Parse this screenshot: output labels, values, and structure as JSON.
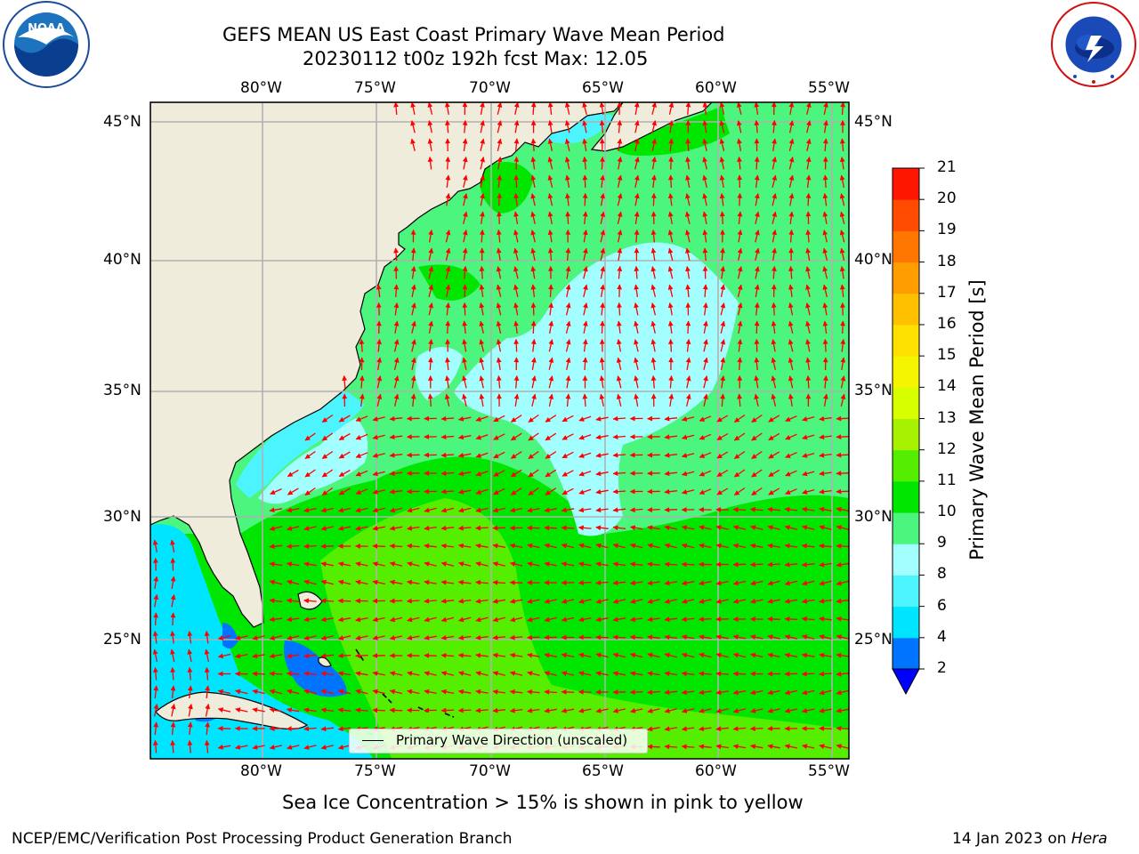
{
  "header": {
    "title_line1": "GEFS MEAN US East Coast Primary Wave Mean Period",
    "title_line2": "20230112 t00z 192h fcst   Max: 12.05"
  },
  "logos": {
    "left": "NOAA",
    "left_ring_text": "NATIONAL OCEANIC AND ATMOSPHERIC ADMINISTRATION · U.S. DEPARTMENT OF COMMERCE",
    "right_ring_text": "NATIONAL WEATHER SERVICE"
  },
  "map": {
    "lon_labels": [
      "80°W",
      "75°W",
      "70°W",
      "65°W",
      "60°W",
      "55°W"
    ],
    "lat_labels": [
      "45°N",
      "40°N",
      "35°N",
      "30°N",
      "25°N"
    ],
    "colors": {
      "land": "#efecdc",
      "arrows": "#ff0000",
      "grid": "#b0b0b0",
      "coast": "#000000"
    },
    "legend_label": "Primary Wave Direction (unscaled)"
  },
  "colorbar": {
    "title": "Primary Wave Mean Period [s]",
    "tick_labels": [
      "2",
      "4",
      "6",
      "8",
      "9",
      "10",
      "11",
      "12",
      "13",
      "14",
      "15",
      "16",
      "17",
      "18",
      "19",
      "20",
      "21"
    ],
    "colors": [
      "#0000ff",
      "#0073ff",
      "#00e5ff",
      "#4cf4ff",
      "#a3ffff",
      "#4cf57d",
      "#00e600",
      "#55ee00",
      "#a6f200",
      "#d8ff00",
      "#f5f500",
      "#ffe100",
      "#ffc000",
      "#ff9d00",
      "#ff7700",
      "#ff4c00",
      "#ff1600",
      "#ff0000"
    ]
  },
  "footer": {
    "note": "Sea Ice Concentration > 15% is shown in pink to yellow",
    "credit_left": "NCEP/EMC/Verification Post Processing Product Generation Branch",
    "credit_date": "14 Jan 2023 on ",
    "credit_host": "Hera"
  }
}
